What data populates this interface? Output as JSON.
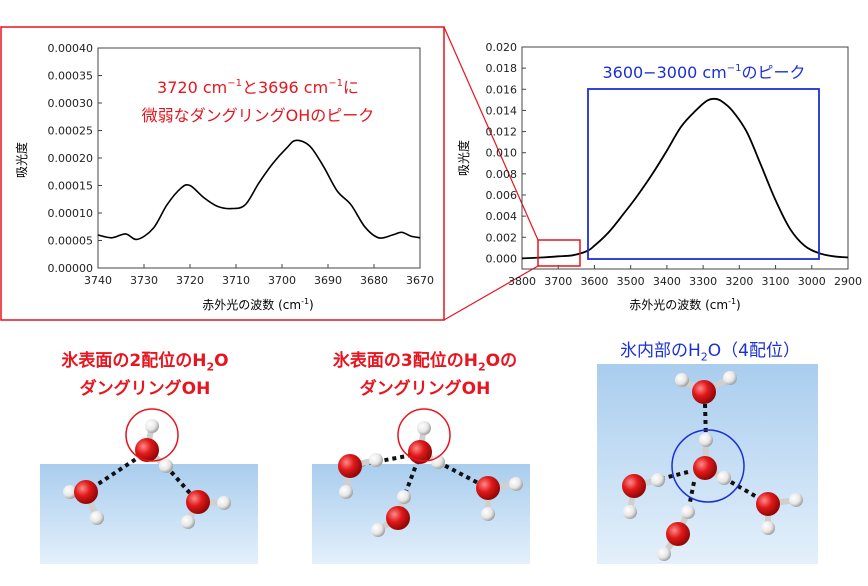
{
  "colors": {
    "zoom_frame": "#e8141e",
    "peak_box": "#1b2fd6",
    "curve": "#000000",
    "ice": "#a9cdee",
    "oxygen": "#e01a1a",
    "hydrogen": "#eeeeee"
  },
  "chart_data": [
    {
      "type": "line",
      "ylabel": "吸光度",
      "xlabel": "赤外光の波数 (cm",
      "xlabel_sup": "-1",
      "xlabel_tail": ")",
      "xlim": [
        3740,
        3670
      ],
      "ylim": [
        0,
        0.0004
      ],
      "xticks": [
        3740,
        3730,
        3720,
        3710,
        3700,
        3690,
        3680,
        3670
      ],
      "yticks": [
        "0.00000",
        "0.00005",
        "0.00010",
        "0.00015",
        "0.00020",
        "0.00025",
        "0.00030",
        "0.00035",
        "0.00040"
      ],
      "annotation": {
        "line1_a": "3720 cm",
        "line1_b": "と3696 cm",
        "line1_c": "に",
        "sup": "−1",
        "line2": "微弱なダングリングOHのピーク"
      },
      "series": [
        {
          "x": [
            3740,
            3737,
            3734,
            3731.5,
            3728,
            3725,
            3722,
            3720,
            3717,
            3714,
            3711,
            3708,
            3705,
            3702,
            3699,
            3697,
            3694,
            3691,
            3688,
            3685,
            3682,
            3679,
            3676,
            3674,
            3672,
            3670
          ],
          "y": [
            6e-05,
            5.5e-05,
            6.2e-05,
            5.2e-05,
            7.2e-05,
            0.000115,
            0.000145,
            0.00015,
            0.000128,
            0.000112,
            0.000108,
            0.000115,
            0.000155,
            0.00019,
            0.000218,
            0.000232,
            0.000222,
            0.000185,
            0.00014,
            0.000115,
            7.5e-05,
            5.5e-05,
            6e-05,
            6.5e-05,
            5.8e-05,
            5.5e-05
          ]
        }
      ]
    },
    {
      "type": "line",
      "ylabel": "吸光度",
      "xlabel": "赤外光の波数 (cm",
      "xlabel_sup": "-1",
      "xlabel_tail": ")",
      "xlim": [
        3800,
        2900
      ],
      "ylim": [
        -0.001,
        0.02
      ],
      "xticks": [
        3800,
        3700,
        3600,
        3500,
        3400,
        3300,
        3200,
        3100,
        3000,
        2900
      ],
      "yticks": [
        "0.000",
        "0.002",
        "0.004",
        "0.006",
        "0.008",
        "0.010",
        "0.012",
        "0.014",
        "0.016",
        "0.018",
        "0.020"
      ],
      "annotation": {
        "text": "3600−3000 cm",
        "sup": "−1",
        "tail": "のピーク"
      },
      "series": [
        {
          "x": [
            3800,
            3740,
            3700,
            3660,
            3620,
            3600,
            3560,
            3520,
            3480,
            3440,
            3400,
            3360,
            3320,
            3290,
            3270,
            3250,
            3220,
            3180,
            3140,
            3100,
            3060,
            3020,
            2980,
            2940,
            2900
          ],
          "y": [
            0.0,
            0.0001,
            0.0002,
            0.0003,
            0.0007,
            0.0012,
            0.0025,
            0.0042,
            0.006,
            0.008,
            0.0102,
            0.0125,
            0.014,
            0.0149,
            0.0151,
            0.0149,
            0.014,
            0.012,
            0.0088,
            0.0055,
            0.0028,
            0.0012,
            0.0005,
            0.0002,
            0.0001
          ]
        }
      ]
    }
  ],
  "panels": [
    {
      "title_a": "氷表面の2配位のH",
      "sub": "2",
      "title_b": "O",
      "title_line2": "ダングリングOH"
    },
    {
      "title_a": "氷表面の3配位のH",
      "sub": "2",
      "title_b": "Oの",
      "title_line2": "ダングリングOH"
    },
    {
      "title_a": "氷内部のH",
      "sub": "2",
      "title_b": "O（4配位）"
    }
  ]
}
